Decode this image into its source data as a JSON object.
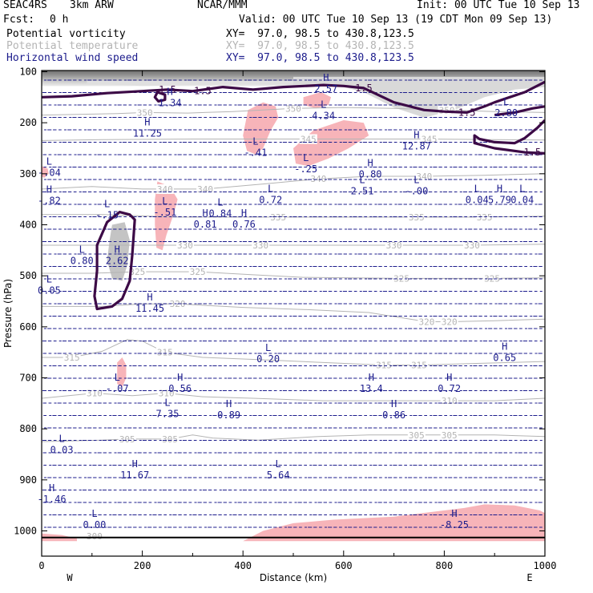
{
  "header": {
    "case": "SEAC4RS",
    "model": "3km ARW",
    "org": "NCAR/MMM",
    "init": "Init: 00 UTC Tue 10 Sep 13",
    "fcst_label": "Fcst:",
    "fcst_value": "0 h",
    "valid": "Valid: 00 UTC Tue 10 Sep 13 (19 CDT Mon 09 Sep 13)",
    "fields": [
      {
        "name": "Potential vorticity",
        "xy": "XY=  97.0, 98.5 to 430.8,123.5",
        "color": "#000000"
      },
      {
        "name": "Potential temperature",
        "xy": "XY=  97.0, 98.5 to 430.8,123.5",
        "color": "#b4b4b4"
      },
      {
        "name": "Horizontal wind speed",
        "xy": "XY=  97.0, 98.5 to 430.8,123.5",
        "color": "#1c1c8c"
      }
    ]
  },
  "chart_data": {
    "type": "cross-section",
    "xlabel": "Distance (km)",
    "ylabel": "Pressure (hPa)",
    "xlim": [
      0,
      1000
    ],
    "ylim": [
      1000,
      100
    ],
    "x_ticks": [
      "0",
      "200",
      "400",
      "600",
      "800",
      "1000"
    ],
    "y_ticks": [
      "100",
      "200",
      "300",
      "400",
      "500",
      "600",
      "700",
      "800",
      "900",
      "1000"
    ],
    "x_ends": {
      "left": "W",
      "right": "E"
    },
    "colors": {
      "pv_contour": "#3c0a46",
      "theta": "#b4b4b4",
      "wind": "#1c1c8c",
      "pv_shade": "#f7b4b9"
    },
    "pv_contour_value": "1.5",
    "pv_contour_labels": [
      {
        "x": 250,
        "p": 135,
        "text": "1.5"
      },
      {
        "x": 320,
        "p": 138,
        "text": "1.5"
      },
      {
        "x": 640,
        "p": 132,
        "text": "1.5"
      },
      {
        "x": 845,
        "p": 180,
        "text": "1.5"
      },
      {
        "x": 975,
        "p": 258,
        "text": "1.5"
      }
    ],
    "theta_labels": [
      {
        "x": 205,
        "p": 180,
        "text": "350"
      },
      {
        "x": 500,
        "p": 172,
        "text": "350"
      },
      {
        "x": 805,
        "p": 175,
        "text": "350"
      },
      {
        "x": 530,
        "p": 232,
        "text": "345"
      },
      {
        "x": 770,
        "p": 232,
        "text": "345"
      },
      {
        "x": 550,
        "p": 310,
        "text": "340"
      },
      {
        "x": 760,
        "p": 305,
        "text": "340"
      },
      {
        "x": 245,
        "p": 330,
        "text": "340"
      },
      {
        "x": 325,
        "p": 330,
        "text": "340"
      },
      {
        "x": 470,
        "p": 385,
        "text": "335"
      },
      {
        "x": 745,
        "p": 385,
        "text": "335"
      },
      {
        "x": 880,
        "p": 385,
        "text": "335"
      },
      {
        "x": 285,
        "p": 440,
        "text": "330"
      },
      {
        "x": 435,
        "p": 440,
        "text": "330"
      },
      {
        "x": 700,
        "p": 440,
        "text": "330"
      },
      {
        "x": 855,
        "p": 440,
        "text": "330"
      },
      {
        "x": 190,
        "p": 492,
        "text": "325"
      },
      {
        "x": 310,
        "p": 492,
        "text": "325"
      },
      {
        "x": 715,
        "p": 505,
        "text": "325"
      },
      {
        "x": 895,
        "p": 505,
        "text": "325"
      },
      {
        "x": 270,
        "p": 555,
        "text": "320"
      },
      {
        "x": 765,
        "p": 590,
        "text": "320"
      },
      {
        "x": 810,
        "p": 590,
        "text": "320"
      },
      {
        "x": 60,
        "p": 660,
        "text": "315"
      },
      {
        "x": 245,
        "p": 650,
        "text": "315"
      },
      {
        "x": 680,
        "p": 675,
        "text": "315"
      },
      {
        "x": 750,
        "p": 675,
        "text": "315"
      },
      {
        "x": 105,
        "p": 730,
        "text": "310"
      },
      {
        "x": 248,
        "p": 730,
        "text": "310"
      },
      {
        "x": 810,
        "p": 745,
        "text": "310"
      },
      {
        "x": 170,
        "p": 820,
        "text": "305"
      },
      {
        "x": 255,
        "p": 820,
        "text": "305"
      },
      {
        "x": 745,
        "p": 812,
        "text": "305"
      },
      {
        "x": 810,
        "p": 812,
        "text": "305"
      },
      {
        "x": 105,
        "p": 1010,
        "text": "300"
      }
    ],
    "extrema": [
      {
        "x": 255,
        "p": 150,
        "t": "H",
        "v": "1.34"
      },
      {
        "x": 565,
        "p": 123,
        "t": "H",
        "v": "2.57"
      },
      {
        "x": 560,
        "p": 175,
        "t": "L",
        "v": "4.34"
      },
      {
        "x": 923,
        "p": 170,
        "t": "L",
        "v": "2.80"
      },
      {
        "x": 210,
        "p": 210,
        "t": "H",
        "v": "11.25"
      },
      {
        "x": 425,
        "p": 248,
        "t": "L",
        "v": "-.41"
      },
      {
        "x": 745,
        "p": 235,
        "t": "H",
        "v": "12.87"
      },
      {
        "x": 525,
        "p": 280,
        "t": "L",
        "v": "-.25"
      },
      {
        "x": 653,
        "p": 290,
        "t": "H",
        "v": "0.80"
      },
      {
        "x": 637,
        "p": 323,
        "t": "L",
        "v": "2.51"
      },
      {
        "x": 745,
        "p": 323,
        "t": "L",
        "v": "-.00"
      },
      {
        "x": 15,
        "p": 287,
        "t": "L",
        "v": "-.04"
      },
      {
        "x": 15,
        "p": 342,
        "t": "H",
        "v": "-.82"
      },
      {
        "x": 455,
        "p": 340,
        "t": "L",
        "v": "0.72"
      },
      {
        "x": 865,
        "p": 340,
        "t": "L",
        "v": "0.04"
      },
      {
        "x": 910,
        "p": 340,
        "t": "H",
        "v": "5.79"
      },
      {
        "x": 955,
        "p": 340,
        "t": "L",
        "v": "0.04"
      },
      {
        "x": 130,
        "p": 370,
        "t": "L",
        "v": "-.15"
      },
      {
        "x": 245,
        "p": 365,
        "t": "L",
        "v": "-.51"
      },
      {
        "x": 355,
        "p": 367,
        "t": "L",
        "v": "0.84"
      },
      {
        "x": 325,
        "p": 388,
        "t": "H",
        "v": "0.81"
      },
      {
        "x": 402,
        "p": 388,
        "t": "H",
        "v": "0.76"
      },
      {
        "x": 80,
        "p": 460,
        "t": "L",
        "v": "0.80"
      },
      {
        "x": 150,
        "p": 460,
        "t": "H",
        "v": "2.62"
      },
      {
        "x": 15,
        "p": 518,
        "t": "L",
        "v": "0.05"
      },
      {
        "x": 215,
        "p": 553,
        "t": "H",
        "v": "11.45"
      },
      {
        "x": 450,
        "p": 652,
        "t": "L",
        "v": "0.20"
      },
      {
        "x": 920,
        "p": 650,
        "t": "H",
        "v": "0.65"
      },
      {
        "x": 150,
        "p": 710,
        "t": "L",
        "v": "-.07"
      },
      {
        "x": 275,
        "p": 710,
        "t": "H",
        "v": "0.56"
      },
      {
        "x": 655,
        "p": 710,
        "t": "H",
        "v": "13.4"
      },
      {
        "x": 810,
        "p": 710,
        "t": "H",
        "v": "0.72"
      },
      {
        "x": 250,
        "p": 760,
        "t": "L",
        "v": "7.35"
      },
      {
        "x": 372,
        "p": 762,
        "t": "H",
        "v": "0.89"
      },
      {
        "x": 700,
        "p": 762,
        "t": "H",
        "v": "0.86"
      },
      {
        "x": 40,
        "p": 830,
        "t": "L",
        "v": "0.03"
      },
      {
        "x": 185,
        "p": 880,
        "t": "H",
        "v": "11.67"
      },
      {
        "x": 470,
        "p": 880,
        "t": "L",
        "v": "5.64"
      },
      {
        "x": 20,
        "p": 927,
        "t": "H",
        "v": "-1.46"
      },
      {
        "x": 105,
        "p": 977,
        "t": "L",
        "v": "0.00"
      },
      {
        "x": 820,
        "p": 977,
        "t": "H",
        "v": "-8.25"
      }
    ]
  }
}
